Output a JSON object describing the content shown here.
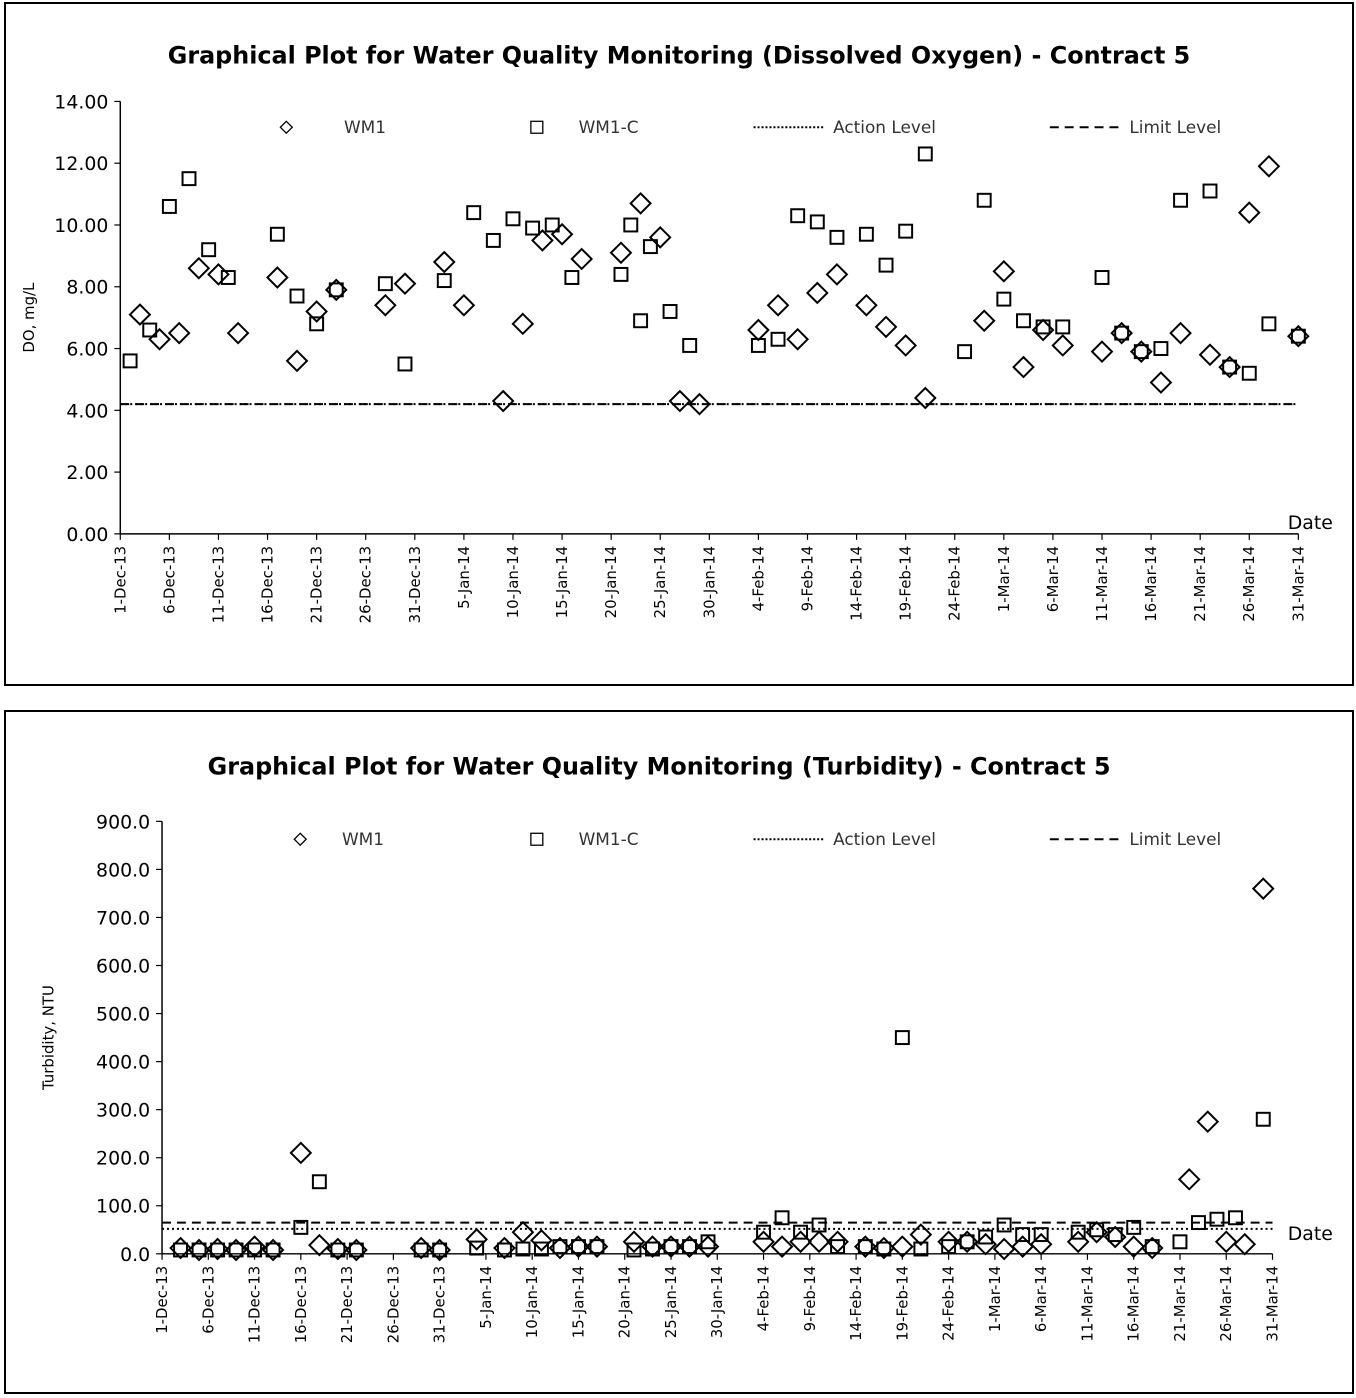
{
  "chart_data": [
    {
      "type": "scatter",
      "title": "Graphical Plot for Water Quality Monitoring (Dissolved Oxygen) - Contract 5",
      "ylabel": "DO, mg/L",
      "xlabel": "Date",
      "ylim": [
        0,
        14
      ],
      "yticks": [
        "0.00",
        "2.00",
        "4.00",
        "6.00",
        "8.00",
        "10.00",
        "12.00",
        "14.00"
      ],
      "xlim": [
        "2013-12-01",
        "2014-03-31"
      ],
      "xticks": [
        "1-Dec-13",
        "6-Dec-13",
        "11-Dec-13",
        "16-Dec-13",
        "21-Dec-13",
        "26-Dec-13",
        "31-Dec-13",
        "5-Jan-14",
        "10-Jan-14",
        "15-Jan-14",
        "20-Jan-14",
        "25-Jan-14",
        "30-Jan-14",
        "4-Feb-14",
        "9-Feb-14",
        "14-Feb-14",
        "19-Feb-14",
        "24-Feb-14",
        "1-Mar-14",
        "6-Mar-14",
        "11-Mar-14",
        "16-Mar-14",
        "21-Mar-14",
        "26-Mar-14",
        "31-Mar-14"
      ],
      "legend": [
        "WM1",
        "WM1-C",
        "Action Level",
        "Limit Level"
      ],
      "legend_position": "top",
      "grid": false,
      "series": [
        {
          "name": "WM1",
          "marker": "diamond",
          "x": [
            "2013-12-03",
            "2013-12-05",
            "2013-12-07",
            "2013-12-09",
            "2013-12-11",
            "2013-12-13",
            "2013-12-17",
            "2013-12-19",
            "2013-12-21",
            "2013-12-23",
            "2013-12-28",
            "2013-12-30",
            "2014-01-03",
            "2014-01-05",
            "2014-01-09",
            "2014-01-11",
            "2014-01-13",
            "2014-01-15",
            "2014-01-17",
            "2014-01-21",
            "2014-01-23",
            "2014-01-25",
            "2014-01-27",
            "2014-01-29",
            "2014-02-04",
            "2014-02-06",
            "2014-02-08",
            "2014-02-10",
            "2014-02-12",
            "2014-02-15",
            "2014-02-17",
            "2014-02-19",
            "2014-02-21",
            "2014-02-27",
            "2014-03-01",
            "2014-03-03",
            "2014-03-05",
            "2014-03-07",
            "2014-03-11",
            "2014-03-13",
            "2014-03-15",
            "2014-03-17",
            "2014-03-19",
            "2014-03-22",
            "2014-03-24",
            "2014-03-26",
            "2014-03-28",
            "2014-03-31"
          ],
          "y": [
            7.1,
            6.3,
            6.5,
            8.6,
            8.4,
            6.5,
            8.3,
            5.6,
            7.2,
            7.9,
            7.4,
            8.1,
            8.8,
            7.4,
            4.3,
            6.8,
            9.5,
            9.7,
            8.9,
            9.1,
            10.7,
            9.6,
            4.3,
            4.2,
            6.6,
            7.4,
            6.3,
            7.8,
            8.4,
            7.4,
            6.7,
            6.1,
            4.4,
            6.9,
            8.5,
            5.4,
            6.6,
            6.1,
            5.9,
            6.5,
            5.9,
            4.9,
            6.5,
            5.8,
            5.4,
            10.4,
            11.9,
            6.4
          ]
        },
        {
          "name": "WM1-C",
          "marker": "square",
          "x": [
            "2013-12-02",
            "2013-12-04",
            "2013-12-06",
            "2013-12-08",
            "2013-12-10",
            "2013-12-12",
            "2013-12-17",
            "2013-12-19",
            "2013-12-21",
            "2013-12-23",
            "2013-12-28",
            "2013-12-30",
            "2014-01-03",
            "2014-01-06",
            "2014-01-08",
            "2014-01-10",
            "2014-01-12",
            "2014-01-14",
            "2014-01-16",
            "2014-01-21",
            "2014-01-22",
            "2014-01-23",
            "2014-01-24",
            "2014-01-26",
            "2014-01-28",
            "2014-02-04",
            "2014-02-06",
            "2014-02-08",
            "2014-02-10",
            "2014-02-12",
            "2014-02-15",
            "2014-02-17",
            "2014-02-19",
            "2014-02-21",
            "2014-02-25",
            "2014-02-27",
            "2014-03-01",
            "2014-03-03",
            "2014-03-05",
            "2014-03-07",
            "2014-03-11",
            "2014-03-13",
            "2014-03-15",
            "2014-03-17",
            "2014-03-19",
            "2014-03-22",
            "2014-03-24",
            "2014-03-26",
            "2014-03-28",
            "2014-03-31"
          ],
          "y": [
            5.6,
            6.6,
            10.6,
            11.5,
            9.2,
            8.3,
            9.7,
            7.7,
            6.8,
            7.9,
            8.1,
            5.5,
            8.2,
            10.4,
            9.5,
            10.2,
            9.9,
            10.0,
            8.3,
            8.4,
            10.0,
            6.9,
            9.3,
            7.2,
            6.1,
            6.1,
            6.3,
            10.3,
            10.1,
            9.6,
            9.7,
            8.7,
            9.8,
            12.3,
            5.9,
            10.8,
            7.6,
            6.9,
            6.7,
            6.7,
            8.3,
            6.5,
            5.9,
            6.0,
            10.8,
            11.1,
            5.4,
            5.2,
            6.8,
            6.4
          ]
        },
        {
          "name": "Action Level",
          "style": "dotted",
          "value": 4.2
        },
        {
          "name": "Limit Level",
          "style": "dashed",
          "value": 4.2
        }
      ]
    },
    {
      "type": "scatter",
      "title": "Graphical Plot for Water Quality Monitoring (Turbidity)  - Contract 5",
      "ylabel": "Turbidity, NTU",
      "xlabel": "Date",
      "ylim": [
        0,
        900
      ],
      "yticks": [
        "0.0",
        "100.0",
        "200.0",
        "300.0",
        "400.0",
        "500.0",
        "600.0",
        "700.0",
        "800.0",
        "900.0"
      ],
      "xlim": [
        "2013-12-01",
        "2014-03-31"
      ],
      "xticks": [
        "1-Dec-13",
        "6-Dec-13",
        "11-Dec-13",
        "16-Dec-13",
        "21-Dec-13",
        "26-Dec-13",
        "31-Dec-13",
        "5-Jan-14",
        "10-Jan-14",
        "15-Jan-14",
        "20-Jan-14",
        "25-Jan-14",
        "30-Jan-14",
        "4-Feb-14",
        "9-Feb-14",
        "14-Feb-14",
        "19-Feb-14",
        "24-Feb-14",
        "1-Mar-14",
        "6-Mar-14",
        "11-Mar-14",
        "16-Mar-14",
        "21-Mar-14",
        "26-Mar-14",
        "31-Mar-14"
      ],
      "legend": [
        "WM1",
        "WM1-C",
        "Action Level",
        "Limit Level"
      ],
      "legend_position": "top",
      "grid": false,
      "series": [
        {
          "name": "WM1",
          "marker": "diamond",
          "x": [
            "2013-12-03",
            "2013-12-05",
            "2013-12-07",
            "2013-12-09",
            "2013-12-11",
            "2013-12-13",
            "2013-12-16",
            "2013-12-18",
            "2013-12-20",
            "2013-12-22",
            "2013-12-29",
            "2013-12-31",
            "2014-01-04",
            "2014-01-07",
            "2014-01-09",
            "2014-01-11",
            "2014-01-13",
            "2014-01-15",
            "2014-01-17",
            "2014-01-21",
            "2014-01-23",
            "2014-01-25",
            "2014-01-27",
            "2014-01-29",
            "2014-02-04",
            "2014-02-06",
            "2014-02-08",
            "2014-02-10",
            "2014-02-12",
            "2014-02-15",
            "2014-02-17",
            "2014-02-19",
            "2014-02-21",
            "2014-02-24",
            "2014-02-26",
            "2014-02-28",
            "2014-03-02",
            "2014-03-04",
            "2014-03-06",
            "2014-03-10",
            "2014-03-12",
            "2014-03-14",
            "2014-03-16",
            "2014-03-18",
            "2014-03-22",
            "2014-03-24",
            "2014-03-26",
            "2014-03-28",
            "2014-03-30"
          ],
          "y": [
            12,
            8,
            10,
            8,
            15,
            8,
            210,
            18,
            10,
            8,
            12,
            8,
            30,
            12,
            45,
            28,
            12,
            15,
            15,
            25,
            15,
            15,
            15,
            15,
            25,
            15,
            25,
            25,
            25,
            15,
            12,
            15,
            40,
            25,
            25,
            20,
            10,
            15,
            20,
            25,
            45,
            35,
            15,
            12,
            155,
            275,
            25,
            20,
            760
          ]
        },
        {
          "name": "WM1-C",
          "marker": "square",
          "x": [
            "2013-12-03",
            "2013-12-05",
            "2013-12-07",
            "2013-12-09",
            "2013-12-11",
            "2013-12-13",
            "2013-12-16",
            "2013-12-18",
            "2013-12-20",
            "2013-12-22",
            "2013-12-29",
            "2013-12-31",
            "2014-01-04",
            "2014-01-07",
            "2014-01-09",
            "2014-01-11",
            "2014-01-13",
            "2014-01-15",
            "2014-01-17",
            "2014-01-21",
            "2014-01-23",
            "2014-01-25",
            "2014-01-27",
            "2014-01-29",
            "2014-02-04",
            "2014-02-06",
            "2014-02-08",
            "2014-02-10",
            "2014-02-12",
            "2014-02-15",
            "2014-02-17",
            "2014-02-19",
            "2014-02-21",
            "2014-02-24",
            "2014-02-26",
            "2014-02-28",
            "2014-03-02",
            "2014-03-04",
            "2014-03-06",
            "2014-03-10",
            "2014-03-12",
            "2014-03-14",
            "2014-03-16",
            "2014-03-18",
            "2014-03-21",
            "2014-03-23",
            "2014-03-25",
            "2014-03-27",
            "2014-03-30"
          ],
          "y": [
            8,
            8,
            8,
            8,
            8,
            8,
            55,
            150,
            8,
            8,
            8,
            8,
            12,
            8,
            10,
            10,
            15,
            15,
            15,
            8,
            10,
            15,
            15,
            25,
            45,
            75,
            45,
            60,
            15,
            15,
            10,
            450,
            10,
            15,
            25,
            35,
            60,
            40,
            40,
            45,
            50,
            40,
            55,
            15,
            25,
            65,
            72,
            75,
            280
          ]
        },
        {
          "name": "Action Level",
          "style": "dotted",
          "value": 52
        },
        {
          "name": "Limit Level",
          "style": "dashed",
          "value": 65
        }
      ]
    }
  ]
}
